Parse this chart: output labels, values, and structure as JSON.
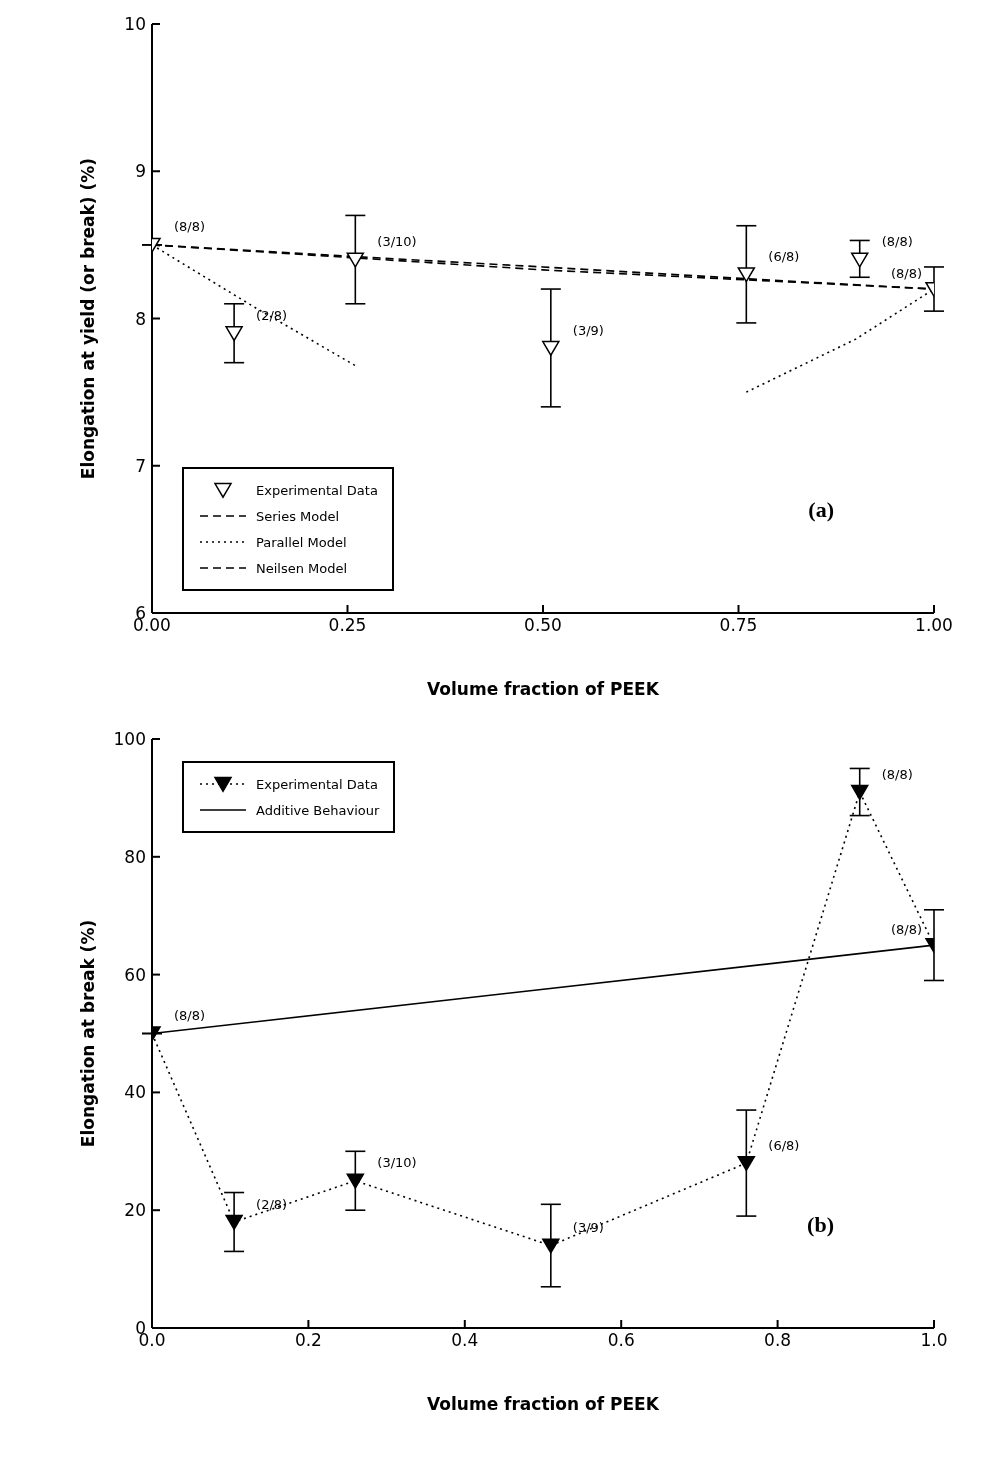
{
  "chart_data": [
    {
      "type": "line",
      "xlabel": "Volume fraction of PEEK",
      "ylabel": "Elongation at yield (or break) (%)",
      "xlim": [
        0,
        1
      ],
      "xticks": [
        {
          "value": 0,
          "label": "0.00"
        },
        {
          "value": 0.25,
          "label": "0.25"
        },
        {
          "value": 0.5,
          "label": "0.50"
        },
        {
          "value": 0.75,
          "label": "0.75"
        },
        {
          "value": 1,
          "label": "1.00"
        }
      ],
      "ylim": [
        6,
        10
      ],
      "yticks": [
        6,
        7,
        8,
        9,
        10
      ],
      "grid": false,
      "legend": "bottom left",
      "marker": "triangle",
      "series": [
        {
          "name": "Experimental Data",
          "type": "scatter",
          "color": "#000000",
          "x": [
            0,
            0.105,
            0.26,
            0.51,
            0.76,
            0.905,
            1.0
          ],
          "values": [
            8.5,
            7.9,
            8.4,
            7.8,
            8.3,
            8.4,
            8.2
          ],
          "errors": [
            null,
            [
              7.7,
              8.1
            ],
            [
              8.1,
              8.7
            ],
            [
              7.4,
              8.2
            ],
            [
              7.97,
              8.63
            ],
            [
              8.28,
              8.53
            ],
            [
              8.05,
              8.35
            ]
          ]
        },
        {
          "name": "Series Model",
          "color": "#000000",
          "line_style": "dashed",
          "marker": "none",
          "x": [
            0,
            0.5,
            1
          ],
          "values": [
            8.5,
            8.33,
            8.2
          ]
        },
        {
          "name": "Parallel Model",
          "color": "#000000",
          "line_style": "dotted",
          "marker": "none",
          "x": [
            0,
            0.13,
            0.26,
            0.5,
            0.76,
            0.9,
            1
          ],
          "values": [
            8.5,
            8.08,
            7.68,
            null,
            7.5,
            7.86,
            8.2
          ]
        },
        {
          "name": "Neilsen Model",
          "color": "#000000",
          "line_style": "dashed",
          "marker": "none",
          "x": [
            0,
            0.26,
            0.5,
            0.76,
            1
          ],
          "values": [
            8.5,
            8.42,
            8.35,
            8.27,
            8.2
          ]
        }
      ],
      "annotations": [
        {
          "text": "(8/8)",
          "x": 0,
          "y": 8.5
        },
        {
          "text": "(2/8)",
          "x": 0.105,
          "y": 7.9
        },
        {
          "text": "(3/10)",
          "x": 0.26,
          "y": 8.4
        },
        {
          "text": "(3/9)",
          "x": 0.51,
          "y": 7.8
        },
        {
          "text": "(6/8)",
          "x": 0.76,
          "y": 8.3
        },
        {
          "text": "(8/8)",
          "x": 0.905,
          "y": 8.4
        },
        {
          "text": "(8/8)",
          "x": 1.0,
          "y": 8.2
        },
        "(a)"
      ]
    },
    {
      "type": "line",
      "xlabel": "Volume fraction of PEEK",
      "ylabel": "Elongation at break (%)",
      "xlim": [
        0,
        1
      ],
      "xticks": [
        {
          "value": 0,
          "label": "0.0"
        },
        {
          "value": 0.2,
          "label": "0.2"
        },
        {
          "value": 0.4,
          "label": "0.4"
        },
        {
          "value": 0.6,
          "label": "0.6"
        },
        {
          "value": 0.8,
          "label": "0.8"
        },
        {
          "value": 1,
          "label": "1.0"
        }
      ],
      "ylim": [
        0,
        100
      ],
      "yticks": [
        0,
        20,
        40,
        60,
        80,
        100
      ],
      "grid": false,
      "legend": "top left",
      "marker": "triangle",
      "series": [
        {
          "name": "Experimental Data",
          "color": "#000000",
          "line_style": "dotted",
          "x": [
            0,
            0.105,
            0.26,
            0.51,
            0.76,
            0.905,
            1.0
          ],
          "values": [
            50,
            18,
            25,
            14,
            28,
            91,
            65
          ],
          "errors": [
            null,
            [
              13,
              23
            ],
            [
              20,
              30
            ],
            [
              7,
              21
            ],
            [
              19,
              37
            ],
            [
              87,
              95
            ],
            [
              59,
              71
            ]
          ]
        },
        {
          "name": "Additive Behaviour",
          "color": "#000000",
          "line_style": "solid",
          "marker": "none",
          "x": [
            0,
            1
          ],
          "values": [
            50,
            65
          ]
        }
      ],
      "annotations": [
        {
          "text": "(8/8)",
          "x": 0,
          "y": 50
        },
        {
          "text": "(2/8)",
          "x": 0.105,
          "y": 18
        },
        {
          "text": "(3/10)",
          "x": 0.26,
          "y": 25
        },
        {
          "text": "(3/9)",
          "x": 0.51,
          "y": 14
        },
        {
          "text": "(6/8)",
          "x": 0.76,
          "y": 28
        },
        {
          "text": "(8/8)",
          "x": 0.905,
          "y": 91
        },
        {
          "text": "(8/8)",
          "x": 1.0,
          "y": 65
        },
        "(b)"
      ]
    }
  ]
}
